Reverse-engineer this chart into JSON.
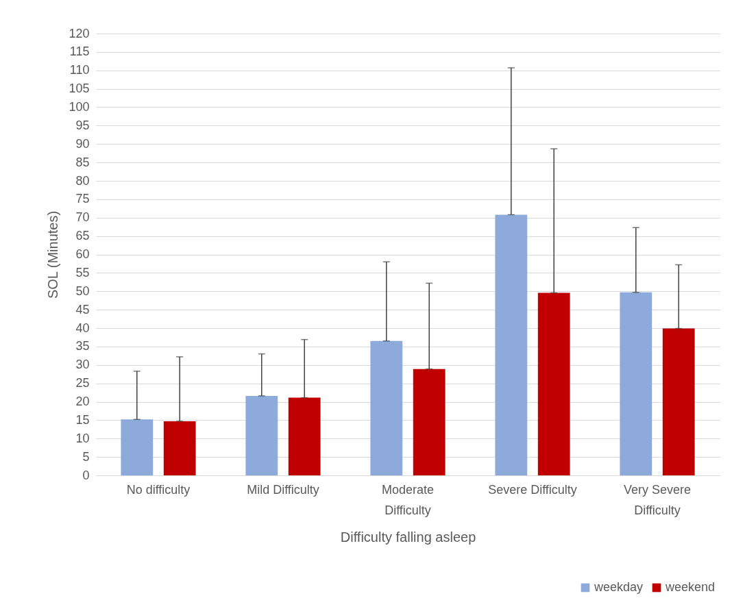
{
  "chart_data": {
    "type": "bar",
    "xlabel": "Difficulty falling asleep",
    "ylabel": "SOL (Minutes)",
    "categories": [
      "No difficulty",
      "Mild Difficulty",
      "Moderate Difficulty",
      "Severe Difficulty",
      "Very Severe Difficulty"
    ],
    "series": [
      {
        "name": "weekday",
        "color": "#8eaadb",
        "values": [
          15.2,
          21.6,
          36.5,
          70.8,
          49.7
        ],
        "errors": [
          [
            15.2,
            28.3
          ],
          [
            21.6,
            33
          ],
          [
            36.5,
            58
          ],
          [
            70.8,
            110.7
          ],
          [
            49.7,
            67.3
          ]
        ]
      },
      {
        "name": "weekend",
        "color": "#c00000",
        "values": [
          14.7,
          21.1,
          28.9,
          49.6,
          39.9
        ],
        "errors": [
          [
            14.7,
            32.2
          ],
          [
            21.1,
            36.9
          ],
          [
            28.9,
            52.2
          ],
          [
            49.6,
            88.7
          ],
          [
            39.9,
            57.2
          ]
        ]
      }
    ],
    "ylim": [
      0,
      120
    ],
    "yticks": [
      0,
      5,
      10,
      15,
      20,
      25,
      30,
      35,
      40,
      45,
      50,
      55,
      60,
      65,
      70,
      75,
      80,
      85,
      90,
      95,
      100,
      105,
      110,
      115,
      120
    ],
    "grid": "y",
    "legend": "bottom right"
  }
}
